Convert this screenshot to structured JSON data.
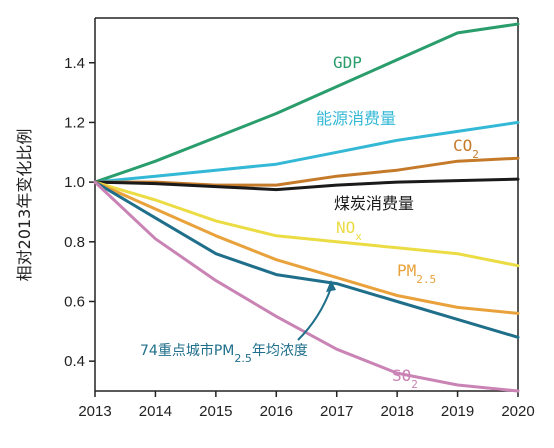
{
  "chart_data": {
    "type": "line",
    "ylabel": "相对2013年变化比例",
    "xlabel": "",
    "x": [
      2013,
      2014,
      2015,
      2016,
      2017,
      2018,
      2019,
      2020
    ],
    "xticks": [
      "2013",
      "2014",
      "2015",
      "2016",
      "2017",
      "2018",
      "2019",
      "2020"
    ],
    "yticks": [
      "0.4",
      "0.6",
      "0.8",
      "1.0",
      "1.2",
      "1.4"
    ],
    "ylim": [
      0.3,
      1.55
    ],
    "grid": false,
    "legend": "none",
    "series": [
      {
        "name": "GDP",
        "label_parts": [
          "GDP"
        ],
        "color": "#2a9d6c",
        "values": [
          1.0,
          1.07,
          1.15,
          1.23,
          1.32,
          1.41,
          1.5,
          1.53
        ]
      },
      {
        "name": "能源消费量",
        "label_parts": [
          "能源消费量"
        ],
        "color": "#33b8d6",
        "values": [
          1.0,
          1.02,
          1.04,
          1.06,
          1.1,
          1.14,
          1.17,
          1.2
        ]
      },
      {
        "name": "CO2",
        "label_parts": [
          "CO",
          "2"
        ],
        "color": "#c57a2a",
        "values": [
          1.0,
          1.0,
          0.99,
          0.99,
          1.02,
          1.04,
          1.07,
          1.08
        ]
      },
      {
        "name": "煤炭消费量",
        "label_parts": [
          "煤炭消费量"
        ],
        "color": "#1a1a1a",
        "values": [
          1.0,
          0.995,
          0.985,
          0.975,
          0.99,
          1.0,
          1.005,
          1.01
        ]
      },
      {
        "name": "NOx",
        "label_parts": [
          "NO",
          "x"
        ],
        "color": "#ecdc44",
        "values": [
          1.0,
          0.94,
          0.87,
          0.82,
          0.8,
          0.78,
          0.76,
          0.72
        ]
      },
      {
        "name": "PM2.5",
        "label_parts": [
          "PM",
          "2.5"
        ],
        "color": "#e9a23b",
        "values": [
          1.0,
          0.91,
          0.82,
          0.74,
          0.68,
          0.62,
          0.58,
          0.56
        ]
      },
      {
        "name": "74重点城市PM2.5年均浓度",
        "label_parts": [
          "74重点城市PM",
          "2.5",
          "年均浓度"
        ],
        "color": "#1f6f8b",
        "values": [
          1.0,
          0.88,
          0.76,
          0.69,
          0.66,
          0.6,
          0.54,
          0.48
        ]
      },
      {
        "name": "SO2",
        "label_parts": [
          "SO",
          "2"
        ],
        "color": "#c983b4",
        "values": [
          1.0,
          0.81,
          0.67,
          0.55,
          0.44,
          0.36,
          0.32,
          0.3
        ]
      }
    ]
  }
}
